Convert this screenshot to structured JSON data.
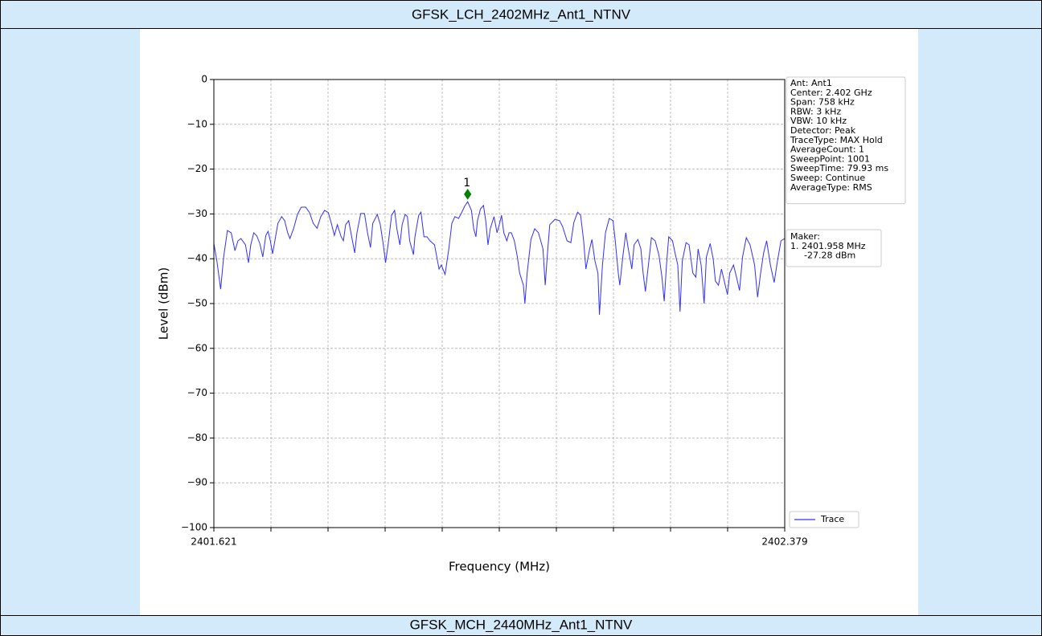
{
  "header": {
    "title": "GFSK_LCH_2402MHz_Ant1_NTNV"
  },
  "chart_data": {
    "type": "line",
    "xlabel": "Frequency (MHz)",
    "ylabel": "Level (dBm)",
    "xlim": [
      2401.621,
      2402.379
    ],
    "xticks": [
      2401.621,
      2402.379
    ],
    "ylim": [
      -100,
      0
    ],
    "yticks": [
      0,
      {
        "value": -10,
        "label": "−10"
      },
      {
        "value": -20,
        "label": "−20"
      },
      {
        "value": -30,
        "label": "−30"
      },
      {
        "value": -40,
        "label": "−40"
      },
      {
        "value": -50,
        "label": "−50"
      },
      {
        "value": -60,
        "label": "−60"
      },
      {
        "value": -70,
        "label": "−70"
      },
      {
        "value": -80,
        "label": "−80"
      },
      {
        "value": -90,
        "label": "−90"
      },
      {
        "value": -100,
        "label": "−100"
      }
    ],
    "grid": true,
    "legend": "lower right",
    "x": [
      2401.621,
      2401.625,
      2401.63,
      2401.634,
      2401.639,
      2401.644,
      2401.649,
      2401.653,
      2401.657,
      2401.663,
      2401.667,
      2401.67,
      2401.674,
      2401.678,
      2401.682,
      2401.686,
      2401.69,
      2401.693,
      2401.696,
      2401.699,
      2401.702,
      2401.706,
      2401.711,
      2401.715,
      2401.719,
      2401.722,
      2401.727,
      2401.732,
      2401.737,
      2401.743,
      2401.748,
      2401.753,
      2401.758,
      2401.763,
      2401.768,
      2401.773,
      2401.777,
      2401.781,
      2401.785,
      2401.79,
      2401.793,
      2401.796,
      2401.8,
      2401.805,
      2401.808,
      2401.811,
      2401.816,
      2401.821,
      2401.825,
      2401.829,
      2401.832,
      2401.838,
      2401.842,
      2401.846,
      2401.849,
      2401.853,
      2401.857,
      2401.861,
      2401.864,
      2401.868,
      2401.871,
      2401.875,
      2401.878,
      2401.881,
      2401.886,
      2401.888,
      2401.893,
      2401.896,
      2401.9,
      2401.904,
      2401.908,
      2401.914,
      2401.917,
      2401.92,
      2401.923,
      2401.928,
      2401.933,
      2401.937,
      2401.941,
      2401.946,
      2401.95,
      2401.954,
      2401.958,
      2401.963,
      2401.966,
      2401.969,
      2401.971,
      2401.975,
      2401.979,
      2401.982,
      2401.985,
      2401.988,
      2401.993,
      2401.997,
      2402.0,
      2402.003,
      2402.006,
      2402.01,
      2402.013,
      2402.016,
      2402.02,
      2402.024,
      2402.027,
      2402.032,
      2402.034,
      2402.037,
      2402.042,
      2402.047,
      2402.052,
      2402.058,
      2402.061,
      2402.064,
      2402.067,
      2402.074,
      2402.08,
      2402.084,
      2402.09,
      2402.095,
      2402.099,
      2402.104,
      2402.108,
      2402.112,
      2402.115,
      2402.12,
      2402.123,
      2402.127,
      2402.131,
      2402.133,
      2402.137,
      2402.141,
      2402.146,
      2402.151,
      2402.154,
      2402.158,
      2402.16,
      2402.164,
      2402.168,
      2402.171,
      2402.176,
      2402.179,
      2402.184,
      2402.188,
      2402.191,
      2402.194,
      2402.198,
      2402.202,
      2402.207,
      2402.212,
      2402.216,
      2402.219,
      2402.222,
      2402.225,
      2402.23,
      2402.234,
      2402.237,
      2402.24,
      2402.243,
      2402.248,
      2402.252,
      2402.257,
      2402.261,
      2402.264,
      2402.268,
      2402.272,
      2402.275,
      2402.28,
      2402.284,
      2402.287,
      2402.291,
      2402.295,
      2402.3,
      2402.303,
      2402.306,
      2402.311,
      2402.315,
      2402.319,
      2402.323,
      2402.328,
      2402.333,
      2402.339,
      2402.343,
      2402.347,
      2402.351,
      2402.355,
      2402.36,
      2402.365,
      2402.369,
      2402.374,
      2402.379
    ],
    "series": [
      {
        "name": "Trace",
        "color": "#3030ff",
        "values": [
          -36.6,
          -40.5,
          -46.8,
          -39.6,
          -33.7,
          -34.2,
          -38.2,
          -36.0,
          -35.5,
          -36.9,
          -40.9,
          -36.9,
          -34.2,
          -34.9,
          -36.6,
          -39.6,
          -34.8,
          -33.9,
          -36.0,
          -38.9,
          -36.0,
          -32.1,
          -30.6,
          -31.5,
          -34.2,
          -35.5,
          -33.2,
          -30.1,
          -28.5,
          -28.5,
          -29.7,
          -32.1,
          -33.2,
          -30.6,
          -29.2,
          -29.7,
          -32.1,
          -34.8,
          -32.4,
          -35.1,
          -36.0,
          -32.4,
          -31.5,
          -36.0,
          -38.7,
          -34.2,
          -29.9,
          -29.9,
          -34.2,
          -37.5,
          -32.1,
          -30.1,
          -32.4,
          -36.9,
          -40.9,
          -36.0,
          -30.3,
          -29.2,
          -33.3,
          -36.9,
          -32.4,
          -30.1,
          -30.6,
          -36.0,
          -39.1,
          -35.1,
          -30.3,
          -29.6,
          -35.1,
          -35.1,
          -36.0,
          -36.9,
          -39.6,
          -42.3,
          -41.4,
          -43.5,
          -37.8,
          -32.1,
          -30.6,
          -31.0,
          -29.7,
          -28.3,
          -27.28,
          -29.2,
          -33.3,
          -35.1,
          -31.5,
          -28.9,
          -28.1,
          -31.5,
          -36.9,
          -33.3,
          -30.6,
          -34.2,
          -32.4,
          -30.3,
          -34.2,
          -36.0,
          -34.2,
          -34.2,
          -36.0,
          -39.6,
          -43.2,
          -45.9,
          -50.0,
          -43.2,
          -35.7,
          -33.3,
          -34.2,
          -37.8,
          -45.9,
          -38.7,
          -32.4,
          -31.2,
          -31.5,
          -32.8,
          -36.0,
          -36.4,
          -31.9,
          -29.6,
          -30.3,
          -36.0,
          -42.3,
          -37.8,
          -35.7,
          -40.5,
          -43.2,
          -52.5,
          -41.4,
          -34.2,
          -31.0,
          -31.5,
          -36.0,
          -43.2,
          -45.9,
          -39.6,
          -34.2,
          -37.5,
          -42.3,
          -36.9,
          -35.7,
          -37.8,
          -43.2,
          -47.3,
          -41.4,
          -35.3,
          -36.0,
          -39.2,
          -44.1,
          -49.5,
          -41.4,
          -35.1,
          -36.0,
          -39.2,
          -41.4,
          -51.8,
          -40.5,
          -36.4,
          -36.9,
          -43.2,
          -44.1,
          -37.8,
          -41.4,
          -50.0,
          -39.6,
          -36.6,
          -40.0,
          -45.0,
          -45.9,
          -42.3,
          -45.9,
          -48.0,
          -43.2,
          -41.4,
          -44.1,
          -47.1,
          -39.6,
          -35.3,
          -36.9,
          -41.4,
          -48.6,
          -43.2,
          -38.7,
          -36.0,
          -41.4,
          -45.3,
          -40.9,
          -36.0,
          -35.5
        ]
      }
    ],
    "marker": {
      "label": "1",
      "x": 2401.958,
      "y": -25.6,
      "color": "#008000"
    },
    "info_box": [
      "Ant: Ant1",
      "Center: 2.402 GHz",
      "Span: 758 kHz",
      "RBW: 3 kHz",
      "VBW: 10 kHz",
      "Detector: Peak",
      "TraceType: MAX Hold",
      "AverageCount: 1",
      "SweepPoint: 1001",
      "SweepTime: 79.93 ms",
      "Sweep: Continue",
      "AverageType: RMS"
    ],
    "marker_box": [
      "Maker:",
      "1. 2401.958 MHz",
      "-27.28 dBm"
    ]
  },
  "footer": {
    "title": "GFSK_MCH_2440MHz_Ant1_NTNV"
  }
}
